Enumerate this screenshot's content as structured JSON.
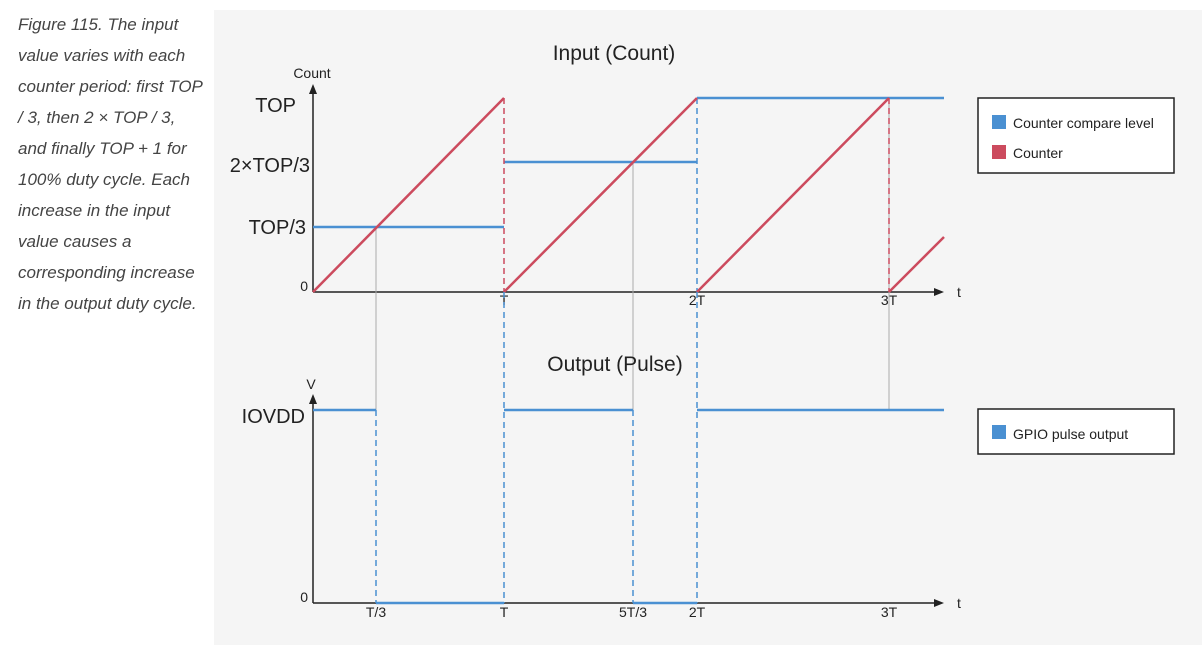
{
  "caption": "Figure 115. The input value varies with each counter period: first TOP / 3, then 2 × TOP / 3, and finally TOP + 1 for 100% duty cycle. Each increase in the input value causes a corresponding increase in the output duty cycle.",
  "colors": {
    "compare": "#4a90d2",
    "counter": "#cc4b5e",
    "guide": "#aaaaaa",
    "axis": "#222222",
    "panel": "#f5f5f5"
  },
  "input_chart": {
    "title": "Input (Count)",
    "y_axis_label": "Count",
    "x_axis_label": "t",
    "y_ticks": [
      "TOP",
      "2×TOP/3",
      "TOP/3",
      "0"
    ],
    "x_ticks": [
      "T",
      "2T",
      "3T"
    ],
    "legend": [
      "Counter compare level",
      "Counter"
    ]
  },
  "output_chart": {
    "title": "Output (Pulse)",
    "y_axis_label": "V",
    "x_axis_label": "t",
    "y_ticks": [
      "IOVDD",
      "0"
    ],
    "x_ticks": [
      "T/3",
      "T",
      "5T/3",
      "2T",
      "3T"
    ],
    "legend": [
      "GPIO pulse output"
    ]
  }
}
